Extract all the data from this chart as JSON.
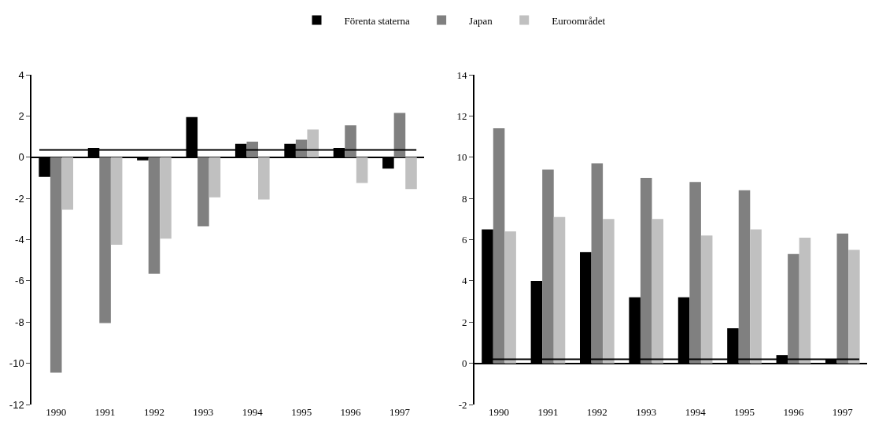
{
  "chart_data": [
    {
      "type": "bar",
      "categories": [
        "1990",
        "1991",
        "1992",
        "1993",
        "1994",
        "1995",
        "1996",
        "1997"
      ],
      "ylim": [
        -12,
        4
      ],
      "yticks": [
        -12,
        -10,
        -8,
        -6,
        -4,
        -2,
        0,
        2,
        4
      ],
      "legend": "top",
      "series": [
        {
          "name": "Förenta staterna",
          "color": "#000000",
          "values": [
            -0.95,
            0.45,
            -0.15,
            1.95,
            0.65,
            0.65,
            0.45,
            -0.55
          ]
        },
        {
          "name": "Japan",
          "color": "#808080",
          "values": [
            -10.45,
            -8.05,
            -5.65,
            -3.35,
            0.75,
            0.85,
            1.55,
            2.15
          ]
        },
        {
          "name": "Euroområdet",
          "color": "#c0c0c0",
          "values": [
            -2.55,
            -4.25,
            -3.95,
            -1.95,
            -2.05,
            1.35,
            -1.25,
            -1.55
          ]
        }
      ],
      "ref_lines": [
        {
          "axis": "y",
          "value": 0.35,
          "color": "#000000"
        }
      ]
    },
    {
      "type": "bar",
      "categories": [
        "1990",
        "1991",
        "1992",
        "1993",
        "1994",
        "1995",
        "1996",
        "1997"
      ],
      "ylim": [
        -2,
        14
      ],
      "yticks": [
        -2,
        0,
        2,
        4,
        6,
        8,
        10,
        12,
        14
      ],
      "series": [
        {
          "color": "#000000",
          "values": [
            6.5,
            4.0,
            5.4,
            3.2,
            3.2,
            1.7,
            0.4,
            0.2
          ]
        },
        {
          "color": "#808080",
          "values": [
            11.4,
            9.4,
            9.7,
            9.0,
            8.8,
            8.4,
            5.3,
            6.3
          ]
        },
        {
          "color": "#c0c0c0",
          "values": [
            6.4,
            7.1,
            7.0,
            7.0,
            6.2,
            6.5,
            6.1,
            5.5
          ]
        }
      ],
      "ref_lines": [
        {
          "axis": "y",
          "value": 0.2,
          "color": "#000000"
        }
      ]
    }
  ]
}
